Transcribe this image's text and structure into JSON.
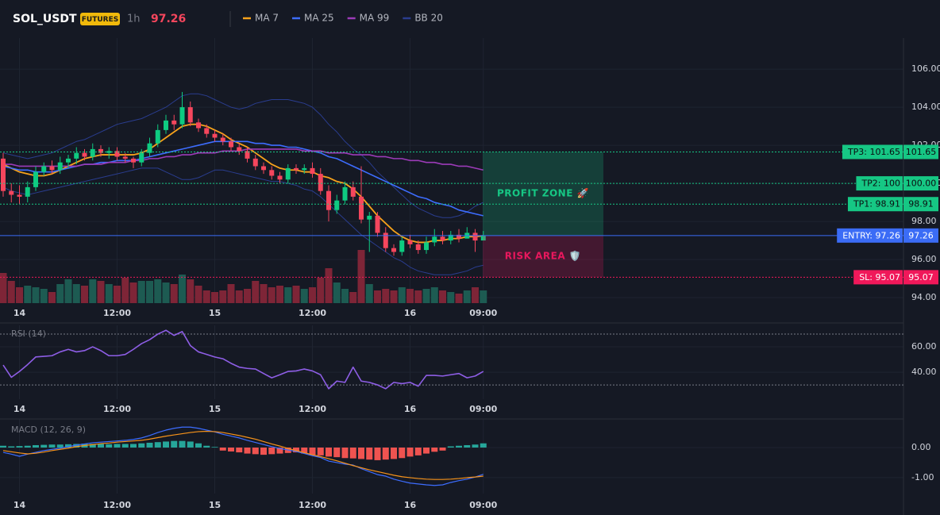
{
  "chart_data": [
    {
      "type": "candlestick",
      "title": "SOL_USDT",
      "badge": "FUTURES",
      "interval": "1h",
      "last_price": 97.26,
      "xlim": [
        -0.39,
        110.63
      ],
      "ylim": [
        93.71,
        107.63
      ],
      "xticks": [
        {
          "value": 2,
          "label": "14"
        },
        {
          "value": 14,
          "label": "12:00"
        },
        {
          "value": 26,
          "label": "15"
        },
        {
          "value": 38,
          "label": "12:00"
        },
        {
          "value": 50,
          "label": "16"
        },
        {
          "value": 59,
          "label": "09:00"
        }
      ],
      "yticks": [
        {
          "value": 94,
          "label": "94.00"
        },
        {
          "value": 96,
          "label": "96.00"
        },
        {
          "value": 98,
          "label": "98.00"
        },
        {
          "value": 100,
          "label": "100.00"
        },
        {
          "value": 102,
          "label": "102.00"
        },
        {
          "value": 104,
          "label": "104.00"
        },
        {
          "value": 106,
          "label": "106.00"
        }
      ],
      "up_color": "#0ecb81",
      "down_color": "#f6465d",
      "volume_up_color": "#1d5b52",
      "volume_down_color": "#7e2537",
      "open": [
        101.3,
        99.6,
        99.4,
        99.3,
        99.8,
        100.6,
        100.9,
        100.7,
        101.1,
        101.3,
        101.6,
        101.4,
        101.8,
        101.6,
        101.7,
        101.4,
        101.3,
        101.1,
        101.6,
        102.1,
        102.8,
        103.3,
        103.1,
        104.0,
        103.2,
        102.9,
        102.6,
        102.4,
        102.2,
        101.9,
        101.7,
        101.3,
        100.9,
        100.7,
        100.4,
        100.2,
        100.8,
        100.7,
        100.8,
        100.5,
        99.6,
        98.6,
        99.1,
        99.8,
        99.3,
        98.1,
        98.3,
        97.4,
        96.6,
        96.4,
        97.0,
        96.8,
        96.5,
        96.9,
        97.2,
        97.0,
        97.3,
        97.1,
        97.4,
        97.0
      ],
      "high": [
        101.6,
        100.0,
        99.9,
        100.1,
        100.9,
        101.1,
        101.2,
        101.4,
        101.5,
        101.9,
        101.8,
        102.1,
        102.0,
        101.9,
        101.9,
        101.6,
        101.4,
        101.8,
        102.4,
        103.1,
        103.6,
        103.6,
        104.8,
        104.3,
        103.4,
        103.1,
        102.8,
        102.6,
        102.4,
        102.1,
        101.9,
        101.5,
        101.1,
        100.9,
        100.6,
        101.0,
        101.0,
        101.0,
        101.1,
        100.8,
        99.9,
        99.4,
        100.1,
        100.1,
        100.9,
        98.5,
        98.5,
        97.7,
        96.8,
        97.2,
        97.3,
        97.0,
        97.2,
        97.6,
        97.5,
        97.5,
        97.6,
        97.7,
        97.6,
        97.5
      ],
      "low": [
        99.3,
        99.0,
        98.9,
        99.0,
        99.6,
        100.4,
        100.5,
        100.5,
        100.8,
        101.0,
        101.2,
        101.2,
        101.4,
        101.3,
        101.2,
        101.1,
        100.8,
        100.9,
        101.4,
        101.9,
        102.6,
        102.8,
        102.9,
        103.0,
        102.7,
        102.4,
        102.2,
        102.0,
        101.7,
        101.5,
        101.1,
        100.7,
        100.5,
        100.2,
        100.0,
        100.0,
        100.5,
        100.5,
        100.3,
        99.4,
        98.0,
        98.4,
        98.9,
        99.1,
        97.9,
        96.4,
        97.2,
        96.4,
        96.2,
        96.2,
        96.6,
        96.3,
        96.3,
        96.7,
        96.8,
        96.8,
        96.9,
        97.1,
        96.4,
        97.0
      ],
      "close": [
        99.6,
        99.4,
        99.3,
        99.8,
        100.6,
        100.9,
        100.7,
        101.1,
        101.3,
        101.6,
        101.4,
        101.8,
        101.6,
        101.7,
        101.4,
        101.3,
        101.1,
        101.6,
        102.1,
        102.8,
        103.3,
        103.1,
        104.0,
        103.2,
        102.9,
        102.6,
        102.4,
        102.2,
        101.9,
        101.7,
        101.3,
        100.9,
        100.7,
        100.4,
        100.2,
        100.8,
        100.7,
        100.8,
        100.5,
        99.6,
        98.6,
        99.1,
        99.8,
        99.3,
        98.1,
        98.3,
        97.4,
        96.6,
        96.4,
        97.0,
        96.8,
        96.5,
        96.9,
        97.2,
        97.0,
        97.3,
        97.1,
        97.4,
        97.0,
        97.26
      ],
      "volume": [
        38,
        28,
        20,
        22,
        20,
        18,
        14,
        24,
        30,
        24,
        22,
        30,
        28,
        24,
        22,
        32,
        26,
        28,
        28,
        30,
        26,
        24,
        36,
        30,
        22,
        16,
        14,
        16,
        24,
        16,
        18,
        28,
        24,
        20,
        22,
        20,
        22,
        18,
        20,
        32,
        44,
        26,
        18,
        14,
        67,
        24,
        16,
        18,
        16,
        20,
        18,
        16,
        18,
        20,
        16,
        14,
        12,
        16,
        20,
        16
      ],
      "series": [
        {
          "name": "MA 7",
          "color": "#f7a21b",
          "values": [
            101.0,
            100.8,
            100.6,
            100.5,
            100.4,
            100.4,
            100.5,
            100.7,
            100.9,
            101.1,
            101.3,
            101.4,
            101.5,
            101.5,
            101.5,
            101.5,
            101.5,
            101.6,
            101.8,
            102.1,
            102.4,
            102.7,
            103.0,
            103.1,
            103.1,
            103.0,
            102.8,
            102.6,
            102.3,
            102.1,
            101.9,
            101.6,
            101.3,
            101.0,
            100.8,
            100.7,
            100.7,
            100.6,
            100.6,
            100.4,
            100.3,
            100.1,
            100.0,
            99.7,
            99.3,
            98.8,
            98.3,
            97.9,
            97.5,
            97.2,
            97.0,
            96.9,
            96.9,
            97.0,
            97.0,
            97.1,
            97.1,
            97.2,
            97.2,
            97.25
          ]
        },
        {
          "name": "MA 25",
          "color": "#3d6dff",
          "values": [
            100.9,
            100.8,
            100.7,
            100.7,
            100.6,
            100.6,
            100.6,
            100.7,
            100.8,
            100.9,
            101.0,
            101.0,
            101.1,
            101.1,
            101.2,
            101.2,
            101.2,
            101.3,
            101.4,
            101.5,
            101.6,
            101.7,
            101.8,
            101.9,
            102.0,
            102.1,
            102.2,
            102.2,
            102.2,
            102.2,
            102.2,
            102.1,
            102.1,
            102.0,
            102.0,
            101.9,
            101.9,
            101.8,
            101.7,
            101.6,
            101.4,
            101.3,
            101.1,
            100.9,
            100.7,
            100.5,
            100.3,
            100.1,
            99.9,
            99.7,
            99.5,
            99.3,
            99.2,
            99.0,
            98.9,
            98.8,
            98.6,
            98.5,
            98.4,
            98.3
          ]
        },
        {
          "name": "MA 99",
          "color": "#9c3bb8",
          "values": [
            101.0,
            101.0,
            100.9,
            100.9,
            100.9,
            100.9,
            100.9,
            100.9,
            100.9,
            100.9,
            101.0,
            101.0,
            101.0,
            101.1,
            101.1,
            101.1,
            101.2,
            101.2,
            101.3,
            101.3,
            101.4,
            101.4,
            101.5,
            101.5,
            101.6,
            101.6,
            101.6,
            101.7,
            101.7,
            101.7,
            101.8,
            101.8,
            101.8,
            101.8,
            101.8,
            101.8,
            101.8,
            101.7,
            101.7,
            101.7,
            101.6,
            101.6,
            101.6,
            101.5,
            101.5,
            101.5,
            101.4,
            101.4,
            101.3,
            101.3,
            101.2,
            101.2,
            101.1,
            101.1,
            101.0,
            101.0,
            100.9,
            100.9,
            100.8,
            100.7
          ]
        },
        {
          "name": "BB 20",
          "color": "#2a3d8f",
          "upper": [
            101.6,
            101.5,
            101.4,
            101.3,
            101.4,
            101.5,
            101.6,
            101.8,
            102.0,
            102.2,
            102.3,
            102.5,
            102.7,
            102.9,
            103.1,
            103.2,
            103.3,
            103.4,
            103.6,
            103.8,
            104.0,
            104.3,
            104.6,
            104.7,
            104.7,
            104.6,
            104.4,
            104.2,
            104.0,
            103.9,
            104.0,
            104.2,
            104.3,
            104.4,
            104.4,
            104.4,
            104.3,
            104.2,
            104.0,
            103.6,
            103.1,
            102.7,
            102.2,
            101.8,
            101.5,
            101.1,
            100.6,
            100.2,
            99.8,
            99.4,
            99.0,
            98.7,
            98.5,
            98.3,
            98.2,
            98.2,
            98.3,
            98.5,
            98.8,
            99.0
          ],
          "lower": [
            99.8,
            99.6,
            99.5,
            99.4,
            99.5,
            99.6,
            99.7,
            99.8,
            99.9,
            100.0,
            100.1,
            100.2,
            100.3,
            100.4,
            100.5,
            100.6,
            100.7,
            100.8,
            100.8,
            100.8,
            100.6,
            100.4,
            100.2,
            100.2,
            100.3,
            100.5,
            100.7,
            100.7,
            100.6,
            100.5,
            100.4,
            100.3,
            100.2,
            100.1,
            100.1,
            100.0,
            99.9,
            99.7,
            99.6,
            99.3,
            98.9,
            98.5,
            98.1,
            97.7,
            97.3,
            97.0,
            96.7,
            96.4,
            96.1,
            95.9,
            95.6,
            95.4,
            95.3,
            95.2,
            95.2,
            95.2,
            95.3,
            95.4,
            95.6,
            95.7
          ]
        }
      ],
      "levels": [
        {
          "value": 101.65,
          "label": "TP3: 101.65",
          "color": "#16c784",
          "text_color": "#0b0e11",
          "dashed": true
        },
        {
          "value": 100,
          "label": "TP2: 100",
          "value_label": "100.00",
          "color": "#16c784",
          "text_color": "#0b0e11",
          "dashed": true
        },
        {
          "value": 98.91,
          "label": "TP1: 98.91",
          "color": "#16c784",
          "text_color": "#0b0e11",
          "dashed": true
        },
        {
          "value": 97.26,
          "label": "ENTRY: 97.26",
          "color": "#3b6cf6",
          "text_color": "#ffffff",
          "dashed": false
        },
        {
          "value": 95.07,
          "label": "SL: 95.07",
          "color": "#f0185a",
          "text_color": "#ffffff",
          "dashed": true
        }
      ],
      "zones": [
        {
          "label": "PROFIT ZONE 🚀",
          "color": "#16c784",
          "from": 101.65,
          "to": 97.26
        },
        {
          "label": "RISK AREA 🛡️",
          "color": "#e8175d",
          "from": 97.26,
          "to": 95.07
        }
      ]
    },
    {
      "type": "rsi",
      "title": "RSI (14)",
      "color": "#8e5ee6",
      "xlim": [
        -0.39,
        110.63
      ],
      "ylim": [
        18.8,
        76.9
      ],
      "xticks": [
        {
          "value": 2,
          "label": "14"
        },
        {
          "value": 14,
          "label": "12:00"
        },
        {
          "value": 26,
          "label": "15"
        },
        {
          "value": 38,
          "label": "12:00"
        },
        {
          "value": 50,
          "label": "16"
        },
        {
          "value": 59,
          "label": "09:00"
        }
      ],
      "yticks": [
        {
          "value": 40,
          "label": "40.00"
        },
        {
          "value": 60,
          "label": "60.00"
        }
      ],
      "levels": [
        70,
        30
      ],
      "values": [
        45.6,
        36.0,
        40.6,
        46,
        52,
        52.5,
        53,
        56,
        58,
        56,
        57,
        60,
        57,
        53,
        53,
        54,
        58,
        62.5,
        65.6,
        70,
        73,
        69,
        72,
        61,
        56,
        54,
        52,
        50.6,
        47,
        44,
        43,
        42.5,
        39,
        35.6,
        38,
        40.6,
        41,
        42.5,
        41,
        38,
        27,
        33,
        32,
        44,
        33,
        32,
        30,
        27,
        32,
        31,
        32,
        29,
        37.5,
        37.5,
        37,
        38,
        39,
        35.6,
        37,
        40.6
      ]
    },
    {
      "type": "macd",
      "title": "MACD (12, 26, 9)",
      "macd_color": "#3d6dff",
      "signal_color": "#f7931a",
      "hist_up_color": "#26a69a",
      "hist_down_color": "#ef5350",
      "xlim": [
        -0.39,
        110.63
      ],
      "ylim": [
        -1.53,
        0.95
      ],
      "xticks": [
        {
          "value": 2,
          "label": "14"
        },
        {
          "value": 14,
          "label": "12:00"
        },
        {
          "value": 26,
          "label": "15"
        },
        {
          "value": 38,
          "label": "12:00"
        },
        {
          "value": 50,
          "label": "16"
        },
        {
          "value": 59,
          "label": "09:00"
        }
      ],
      "yticks": [
        {
          "value": 0,
          "label": "0.00"
        },
        {
          "value": -1,
          "label": "-1.00"
        }
      ],
      "macd": [
        -0.16,
        -0.22,
        -0.29,
        -0.22,
        -0.16,
        -0.1,
        -0.06,
        -0.02,
        0.03,
        0.08,
        0.12,
        0.16,
        0.18,
        0.2,
        0.22,
        0.24,
        0.27,
        0.32,
        0.4,
        0.5,
        0.58,
        0.64,
        0.68,
        0.68,
        0.64,
        0.58,
        0.52,
        0.44,
        0.38,
        0.32,
        0.24,
        0.17,
        0.1,
        0.03,
        -0.03,
        -0.08,
        -0.13,
        -0.2,
        -0.27,
        -0.33,
        -0.45,
        -0.5,
        -0.55,
        -0.58,
        -0.7,
        -0.8,
        -0.9,
        -0.95,
        -1.05,
        -1.12,
        -1.18,
        -1.21,
        -1.24,
        -1.26,
        -1.24,
        -1.16,
        -1.1,
        -1.05,
        -0.98,
        -0.89
      ],
      "signal": [
        -0.1,
        -0.14,
        -0.18,
        -0.21,
        -0.19,
        -0.15,
        -0.1,
        -0.06,
        -0.02,
        0.03,
        0.07,
        0.1,
        0.13,
        0.15,
        0.18,
        0.2,
        0.22,
        0.24,
        0.28,
        0.33,
        0.38,
        0.42,
        0.46,
        0.5,
        0.53,
        0.54,
        0.53,
        0.5,
        0.45,
        0.4,
        0.34,
        0.28,
        0.2,
        0.12,
        0.05,
        -0.03,
        -0.1,
        -0.17,
        -0.24,
        -0.3,
        -0.37,
        -0.44,
        -0.52,
        -0.6,
        -0.67,
        -0.74,
        -0.8,
        -0.86,
        -0.92,
        -0.97,
        -1.0,
        -1.03,
        -1.05,
        -1.06,
        -1.06,
        -1.05,
        -1.03,
        -1.0,
        -0.98,
        -0.95
      ],
      "histogram": [
        0.06,
        0.04,
        0.05,
        0.06,
        0.08,
        0.09,
        0.1,
        0.1,
        0.11,
        0.12,
        0.13,
        0.12,
        0.12,
        0.11,
        0.12,
        0.12,
        0.12,
        0.14,
        0.16,
        0.18,
        0.2,
        0.22,
        0.22,
        0.2,
        0.14,
        0.06,
        0.02,
        -0.1,
        -0.13,
        -0.16,
        -0.2,
        -0.22,
        -0.24,
        -0.22,
        -0.2,
        -0.18,
        -0.16,
        -0.2,
        -0.24,
        -0.26,
        -0.3,
        -0.32,
        -0.35,
        -0.36,
        -0.38,
        -0.4,
        -0.42,
        -0.4,
        -0.38,
        -0.35,
        -0.3,
        -0.26,
        -0.2,
        -0.14,
        -0.1,
        0.04,
        0.06,
        0.08,
        0.1,
        0.14
      ]
    }
  ]
}
